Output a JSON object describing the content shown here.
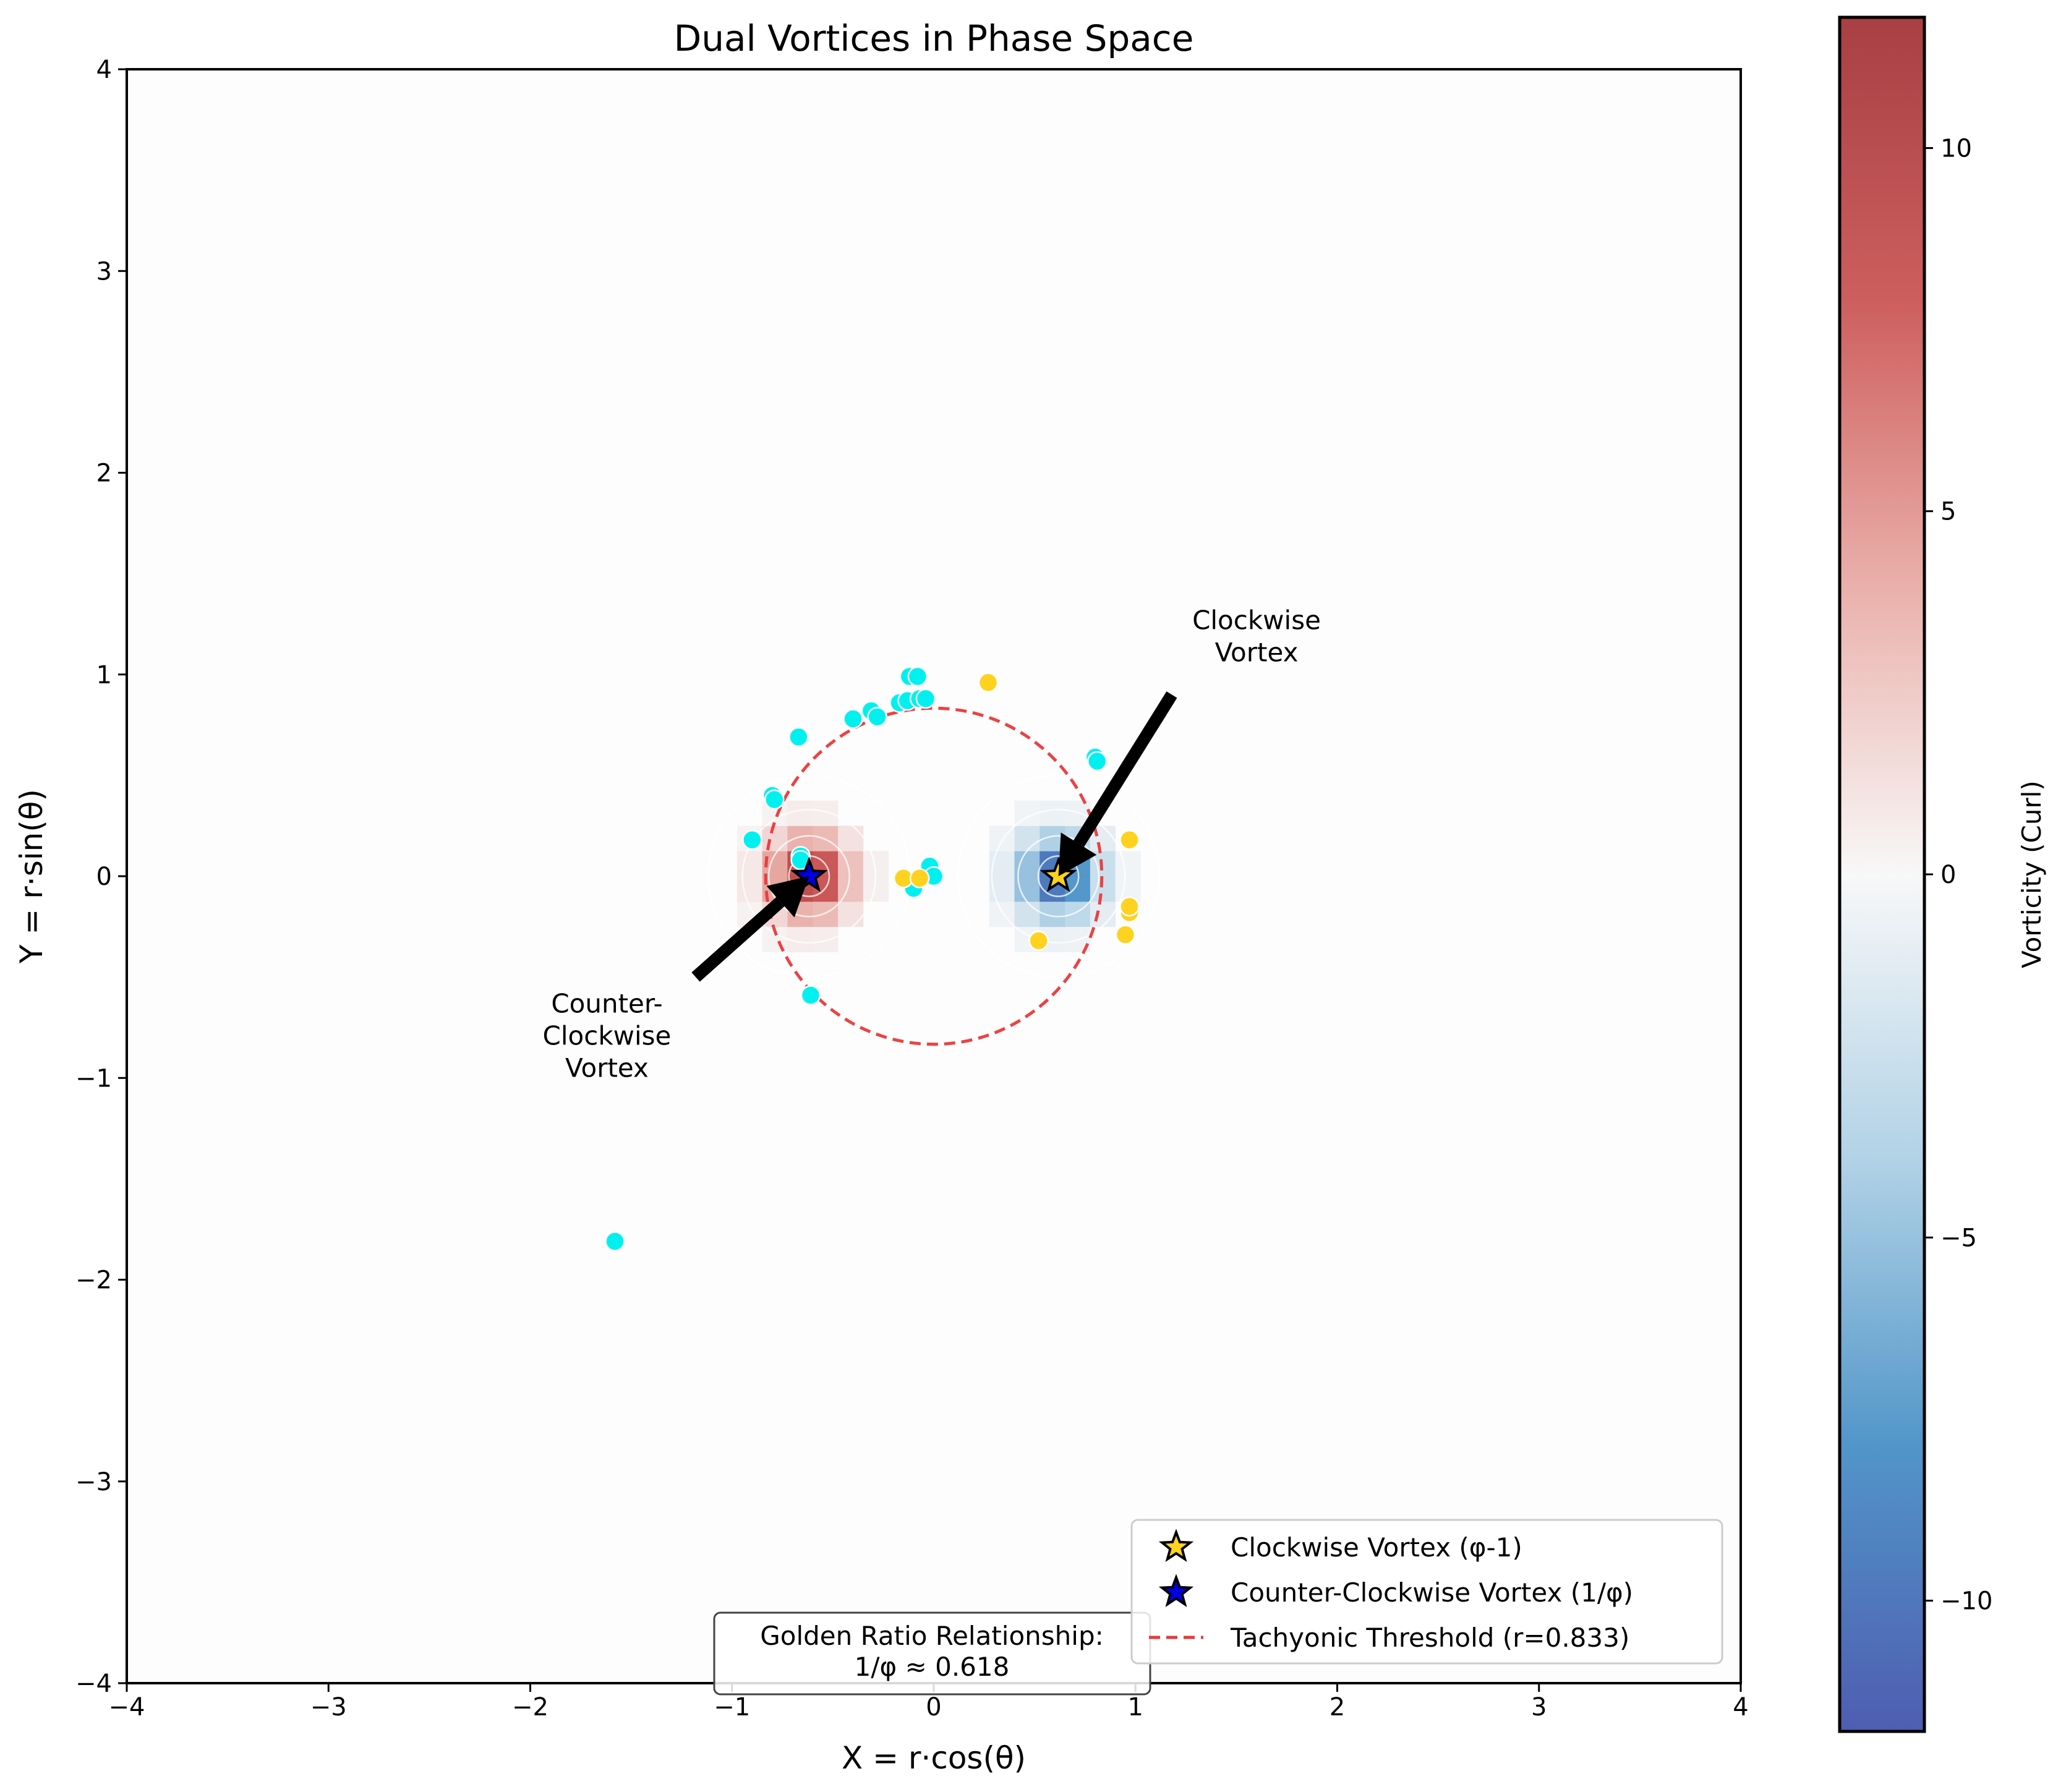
{
  "chart_data": {
    "type": "scatter",
    "title": "Dual Vortices in Phase Space",
    "xlabel": "X = r·cos(θ)",
    "ylabel": "Y = r·sin(θ)",
    "xlim": [
      -4,
      4
    ],
    "ylim": [
      -4,
      4
    ],
    "xticks": [
      -4,
      -3,
      -2,
      -1,
      0,
      1,
      2,
      3,
      4
    ],
    "yticks": [
      -4,
      -3,
      -2,
      -1,
      0,
      1,
      2,
      3,
      4
    ],
    "xtick_labels": [
      "−4",
      "−3",
      "−2",
      "−1",
      "0",
      "1",
      "2",
      "3",
      "4"
    ],
    "ytick_labels": [
      "−4",
      "−3",
      "−2",
      "−1",
      "0",
      "1",
      "2",
      "3",
      "4"
    ],
    "grid": false,
    "legend_position": "bottom-right",
    "colorbar": {
      "label": "Vorticity (Curl)",
      "range": [
        -11.8,
        11.8
      ],
      "ticks": [
        10,
        5,
        0,
        -5,
        -10
      ],
      "tick_labels": [
        "10",
        "5",
        "0",
        "−5",
        "−10"
      ],
      "colors": [
        "#3b4ba8",
        "#3e8ac3",
        "#a9cde3",
        "#f7f7f7",
        "#e8a8a2",
        "#c84d4c",
        "#9e2a2f"
      ]
    },
    "vortices": [
      {
        "label": "Clockwise Vortex (φ-1)",
        "x": 0.618,
        "y": 0.0,
        "color": "#ffd21f",
        "vorticity": -11
      },
      {
        "label": "Counter-Clockwise Vortex (1/φ)",
        "x": -0.618,
        "y": 0.0,
        "color": "#0000e0",
        "vorticity": 11
      }
    ],
    "threshold": {
      "label": "Tachyonic Threshold (r=0.833)",
      "r": 0.833,
      "color": "#e8393a"
    },
    "series": [
      {
        "color": "#00f0f0",
        "points": [
          [
            -0.67,
            0.69
          ],
          [
            -0.4,
            0.78
          ],
          [
            -0.31,
            0.82
          ],
          [
            -0.28,
            0.79
          ],
          [
            -0.17,
            0.86
          ],
          [
            -0.12,
            0.99
          ],
          [
            -0.08,
            0.99
          ],
          [
            -0.13,
            0.87
          ],
          [
            -0.07,
            0.88
          ],
          [
            -0.04,
            0.88
          ],
          [
            -0.8,
            0.4
          ],
          [
            -0.79,
            0.38
          ],
          [
            -0.9,
            0.18
          ],
          [
            -0.66,
            0.1
          ],
          [
            -0.66,
            0.08
          ],
          [
            -0.61,
            -0.59
          ],
          [
            -0.02,
            0.05
          ],
          [
            0.0,
            0.0
          ],
          [
            -0.1,
            -0.06
          ],
          [
            -1.58,
            -1.81
          ],
          [
            0.8,
            0.59
          ],
          [
            0.81,
            0.57
          ]
        ]
      },
      {
        "color": "#ffd21f",
        "points": [
          [
            0.27,
            0.96
          ],
          [
            -0.15,
            -0.01
          ],
          [
            -0.07,
            -0.01
          ],
          [
            0.52,
            -0.32
          ],
          [
            0.95,
            -0.29
          ],
          [
            0.97,
            -0.18
          ],
          [
            0.97,
            -0.15
          ],
          [
            0.97,
            0.18
          ]
        ]
      }
    ],
    "annotations": [
      {
        "text_lines": [
          "Clockwise",
          "Vortex"
        ],
        "text_x": 1.6,
        "text_y": 1.18,
        "arrow_to": [
          0.618,
          0.0
        ],
        "arrow_from": [
          1.18,
          0.9
        ]
      },
      {
        "text_lines": [
          "Counter-",
          "Clockwise",
          "Vortex"
        ],
        "text_x": -1.62,
        "text_y": -0.8,
        "arrow_to": [
          -0.618,
          0.0
        ],
        "arrow_from": [
          -1.18,
          -0.5
        ]
      }
    ],
    "textbox": {
      "lines": [
        "Golden Ratio Relationship:",
        "1/φ ≈ 0.618"
      ]
    }
  }
}
